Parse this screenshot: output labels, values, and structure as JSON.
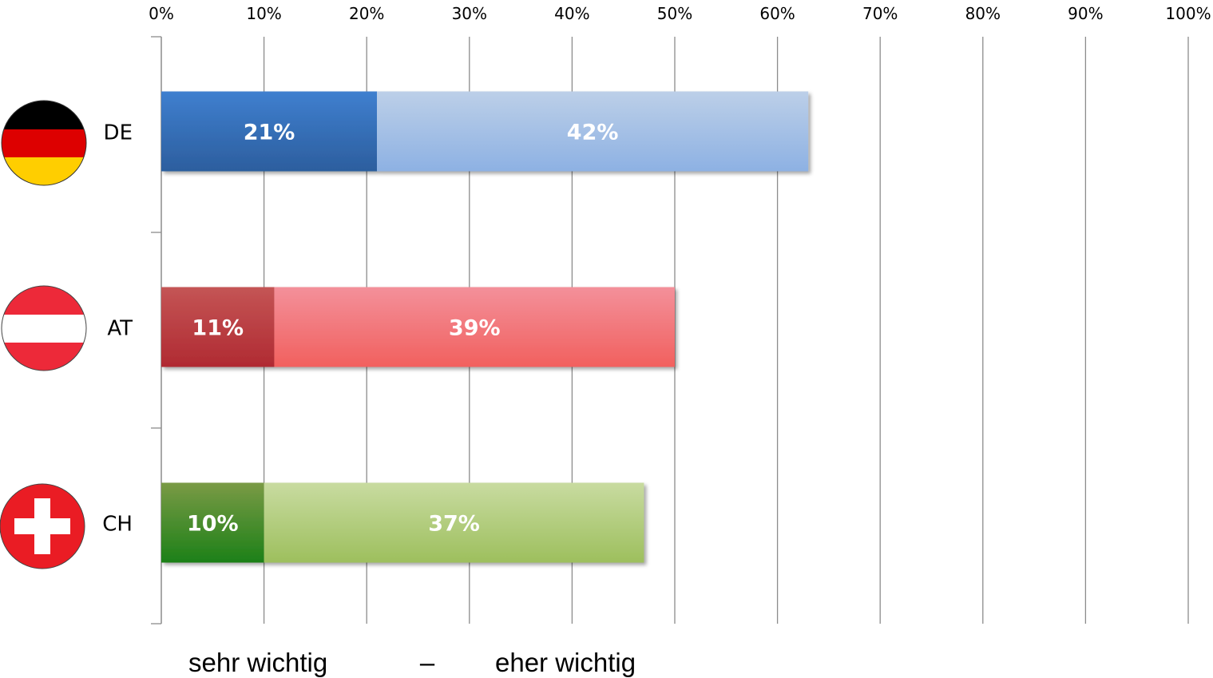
{
  "chart_data": {
    "type": "bar",
    "orientation": "horizontal",
    "stacked": true,
    "categories": [
      "DE",
      "AT",
      "CH"
    ],
    "series": [
      {
        "name": "sehr wichtig",
        "values": [
          21,
          11,
          10
        ],
        "labels": [
          "21%",
          "11%",
          "10%"
        ]
      },
      {
        "name": "eher wichtig",
        "values": [
          42,
          39,
          37
        ],
        "labels": [
          "42%",
          "39%",
          "37%"
        ]
      }
    ],
    "xlim": [
      0,
      100
    ],
    "xticks": [
      "0%",
      "10%",
      "20%",
      "30%",
      "40%",
      "50%",
      "60%",
      "70%",
      "80%",
      "90%",
      "100%"
    ],
    "grid": true,
    "axis_position": "top",
    "legend": {
      "position": "bottom",
      "separator": "–",
      "entries": [
        "sehr wichtig",
        "eher wichtig"
      ]
    },
    "colors": {
      "DE": {
        "dark": [
          "#3f7fcf",
          "#2c5e9e"
        ],
        "light": [
          "#bccfe8",
          "#8db1e3"
        ]
      },
      "AT": {
        "dark": [
          "#c45555",
          "#b02a32"
        ],
        "light": [
          "#f3909a",
          "#f2605e"
        ]
      },
      "CH": {
        "dark": [
          "#7a9a45",
          "#1c8018"
        ],
        "light": [
          "#c8dba0",
          "#9dbf5d"
        ]
      }
    },
    "flags": {
      "DE": "germany-flag-icon",
      "AT": "austria-flag-icon",
      "CH": "switzerland-flag-icon"
    }
  }
}
